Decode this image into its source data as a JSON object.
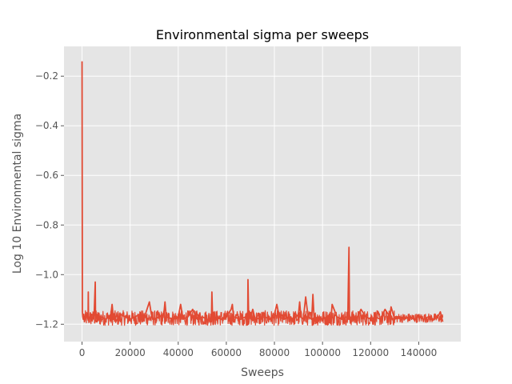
{
  "chart_data": {
    "type": "line",
    "title": "Environmental sigma per sweeps",
    "xlabel": "Sweeps",
    "ylabel": "Log 10 Environmental sigma",
    "xlim": [
      -7500,
      157500
    ],
    "ylim": [
      -1.27,
      -0.08
    ],
    "grid": true,
    "style": "ggplot",
    "line_color": "#E24A33",
    "background_color": "#E5E5E5",
    "x_ticks": [
      0,
      20000,
      40000,
      60000,
      80000,
      100000,
      120000,
      140000
    ],
    "x_tick_labels": [
      "0",
      "20000",
      "40000",
      "60000",
      "80000",
      "100000",
      "120000",
      "140000"
    ],
    "y_ticks": [
      -0.2,
      -0.4,
      -0.6,
      -0.8,
      -1.0,
      -1.2
    ],
    "y_tick_labels": [
      "−0.2",
      "−0.4",
      "−0.6",
      "−0.8",
      "−1.0",
      "−1.2"
    ],
    "series": [
      {
        "x": [
          0,
          150,
          300,
          500,
          700,
          1000,
          1500,
          2000,
          2500,
          2600,
          2700,
          3000,
          4000,
          5000,
          5500,
          5600,
          5700,
          6000,
          8000,
          10000,
          12000,
          12500,
          13000,
          14000,
          16000,
          18000,
          20000,
          24000,
          26000,
          28000,
          29000,
          30000,
          32000,
          34000,
          34500,
          35000,
          38000,
          40000,
          41000,
          42000,
          44000,
          46000,
          48000,
          50000,
          52000,
          53800,
          54000,
          54300,
          56000,
          58000,
          60000,
          62000,
          62500,
          63000,
          66000,
          68000,
          68900,
          69000,
          69300,
          70000,
          71000,
          72000,
          76000,
          78000,
          80000,
          81000,
          82000,
          84000,
          86000,
          88000,
          90000,
          90500,
          91000,
          92000,
          93000,
          94000,
          95500,
          96000,
          96500,
          98000,
          100000,
          102000,
          103500,
          104000,
          106000,
          108000,
          110000,
          110500,
          111000,
          111200,
          111400,
          112000,
          114000,
          116000,
          118000,
          120000,
          122000,
          124000,
          126000,
          128000,
          128500,
          130000,
          132000,
          134000,
          136000,
          138000,
          140000,
          142000,
          144000,
          146000,
          148000,
          149000,
          150000
        ],
        "y": [
          -0.14,
          -1.15,
          -1.17,
          -1.18,
          -1.16,
          -1.19,
          -1.17,
          -1.16,
          -1.18,
          -1.07,
          -1.17,
          -1.18,
          -1.16,
          -1.17,
          -1.03,
          -1.16,
          -1.18,
          -1.19,
          -1.17,
          -1.18,
          -1.16,
          -1.12,
          -1.17,
          -1.19,
          -1.16,
          -1.17,
          -1.18,
          -1.16,
          -1.17,
          -1.11,
          -1.17,
          -1.18,
          -1.17,
          -1.16,
          -1.11,
          -1.17,
          -1.18,
          -1.17,
          -1.12,
          -1.18,
          -1.17,
          -1.14,
          -1.18,
          -1.17,
          -1.18,
          -1.19,
          -1.07,
          -1.18,
          -1.17,
          -1.18,
          -1.17,
          -1.14,
          -1.12,
          -1.17,
          -1.18,
          -1.17,
          -1.18,
          -1.02,
          -1.18,
          -1.17,
          -1.14,
          -1.18,
          -1.17,
          -1.18,
          -1.16,
          -1.12,
          -1.17,
          -1.18,
          -1.17,
          -1.18,
          -1.16,
          -1.11,
          -1.17,
          -1.18,
          -1.09,
          -1.17,
          -1.18,
          -1.08,
          -1.18,
          -1.17,
          -1.18,
          -1.17,
          -1.18,
          -1.12,
          -1.17,
          -1.18,
          -1.17,
          -1.18,
          -0.89,
          -1.16,
          -1.18,
          -1.17,
          -1.18,
          -1.14,
          -1.17,
          -1.18,
          -1.17,
          -1.18,
          -1.14,
          -1.17,
          -1.13,
          -1.18,
          -1.17,
          -1.18,
          -1.17,
          -1.18,
          -1.17,
          -1.18,
          -1.17,
          -1.18,
          -1.17,
          -1.15,
          -1.19
        ]
      }
    ]
  }
}
